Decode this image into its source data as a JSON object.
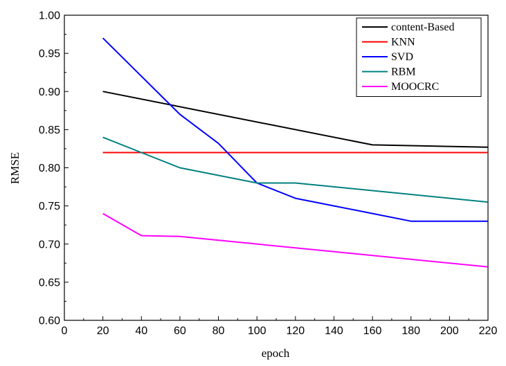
{
  "chart_data": {
    "type": "line",
    "title": "",
    "xlabel": "epoch",
    "ylabel": "RMSE",
    "xlim": [
      0,
      220
    ],
    "ylim": [
      0.6,
      1.0
    ],
    "xticks": [
      0,
      20,
      40,
      60,
      80,
      100,
      120,
      140,
      160,
      180,
      200,
      220
    ],
    "yticks": [
      0.6,
      0.65,
      0.7,
      0.75,
      0.8,
      0.85,
      0.9,
      0.95,
      1.0
    ],
    "xtick_labels": [
      "0",
      "20",
      "40",
      "60",
      "80",
      "100",
      "120",
      "140",
      "160",
      "180",
      "200",
      "220"
    ],
    "ytick_labels": [
      "0.60",
      "0.65",
      "0.70",
      "0.75",
      "0.80",
      "0.85",
      "0.90",
      "0.95",
      "1.00"
    ],
    "grid": false,
    "legend_position": "top-right",
    "series": [
      {
        "name": "content-Based",
        "color": "#000000",
        "x": [
          20,
          160,
          220
        ],
        "y": [
          0.9,
          0.83,
          0.827
        ]
      },
      {
        "name": "KNN",
        "color": "#ff0000",
        "x": [
          20,
          220
        ],
        "y": [
          0.82,
          0.82
        ]
      },
      {
        "name": "SVD",
        "color": "#0000ff",
        "x": [
          20,
          40,
          60,
          80,
          100,
          120,
          140,
          160,
          180,
          200,
          220
        ],
        "y": [
          0.97,
          0.92,
          0.87,
          0.832,
          0.78,
          0.76,
          0.75,
          0.74,
          0.73,
          0.73,
          0.73
        ]
      },
      {
        "name": "RBM",
        "color": "#008080",
        "x": [
          20,
          40,
          60,
          100,
          120,
          220
        ],
        "y": [
          0.84,
          0.82,
          0.8,
          0.78,
          0.78,
          0.755
        ]
      },
      {
        "name": "MOOCRC",
        "color": "#ff00ff",
        "x": [
          20,
          40,
          60,
          220
        ],
        "y": [
          0.74,
          0.711,
          0.71,
          0.67
        ]
      }
    ]
  }
}
